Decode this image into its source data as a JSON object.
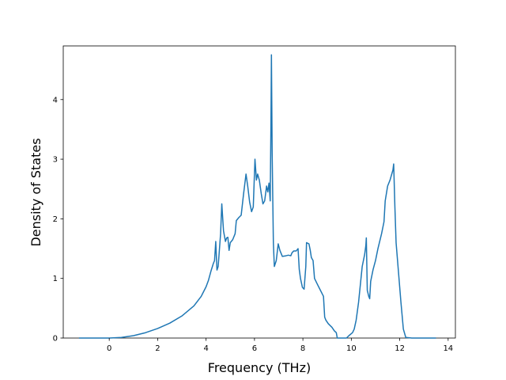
{
  "chart_data": {
    "type": "line",
    "title": "",
    "xlabel": "Frequency (THz)",
    "ylabel": "Density of States",
    "xlim": [
      -1.9,
      14.3
    ],
    "ylim": [
      0,
      4.9
    ],
    "xticks": [
      0,
      2,
      4,
      6,
      8,
      10,
      12,
      14
    ],
    "yticks": [
      0,
      1,
      2,
      3,
      4
    ],
    "grid": false,
    "series": [
      {
        "color": "#1f77b4",
        "points": [
          [
            -1.25,
            0
          ],
          [
            0,
            0
          ],
          [
            0.5,
            0.01
          ],
          [
            1.0,
            0.04
          ],
          [
            1.5,
            0.09
          ],
          [
            2.0,
            0.16
          ],
          [
            2.5,
            0.25
          ],
          [
            3.0,
            0.37
          ],
          [
            3.5,
            0.54
          ],
          [
            3.8,
            0.7
          ],
          [
            4.0,
            0.86
          ],
          [
            4.1,
            0.97
          ],
          [
            4.2,
            1.12
          ],
          [
            4.3,
            1.25
          ],
          [
            4.35,
            1.3
          ],
          [
            4.4,
            1.62
          ],
          [
            4.45,
            1.14
          ],
          [
            4.5,
            1.2
          ],
          [
            4.6,
            1.75
          ],
          [
            4.65,
            2.25
          ],
          [
            4.72,
            1.8
          ],
          [
            4.8,
            1.62
          ],
          [
            4.85,
            1.68
          ],
          [
            4.9,
            1.69
          ],
          [
            4.95,
            1.47
          ],
          [
            5.0,
            1.6
          ],
          [
            5.1,
            1.65
          ],
          [
            5.2,
            1.75
          ],
          [
            5.25,
            1.97
          ],
          [
            5.35,
            2.02
          ],
          [
            5.45,
            2.06
          ],
          [
            5.55,
            2.42
          ],
          [
            5.65,
            2.75
          ],
          [
            5.72,
            2.55
          ],
          [
            5.8,
            2.28
          ],
          [
            5.88,
            2.12
          ],
          [
            5.95,
            2.2
          ],
          [
            6.02,
            3.0
          ],
          [
            6.08,
            2.65
          ],
          [
            6.13,
            2.75
          ],
          [
            6.2,
            2.65
          ],
          [
            6.28,
            2.42
          ],
          [
            6.35,
            2.25
          ],
          [
            6.42,
            2.3
          ],
          [
            6.5,
            2.55
          ],
          [
            6.55,
            2.45
          ],
          [
            6.6,
            2.6
          ],
          [
            6.65,
            2.3
          ],
          [
            6.68,
            3.6
          ],
          [
            6.7,
            4.75
          ],
          [
            6.73,
            3.1
          ],
          [
            6.78,
            1.6
          ],
          [
            6.82,
            1.2
          ],
          [
            6.9,
            1.3
          ],
          [
            6.98,
            1.58
          ],
          [
            7.05,
            1.47
          ],
          [
            7.15,
            1.37
          ],
          [
            7.3,
            1.38
          ],
          [
            7.4,
            1.39
          ],
          [
            7.5,
            1.38
          ],
          [
            7.55,
            1.43
          ],
          [
            7.62,
            1.46
          ],
          [
            7.72,
            1.46
          ],
          [
            7.8,
            1.5
          ],
          [
            7.85,
            1.15
          ],
          [
            7.9,
            1.0
          ],
          [
            7.98,
            0.85
          ],
          [
            8.05,
            0.82
          ],
          [
            8.12,
            1.2
          ],
          [
            8.15,
            1.6
          ],
          [
            8.25,
            1.58
          ],
          [
            8.3,
            1.48
          ],
          [
            8.35,
            1.35
          ],
          [
            8.42,
            1.3
          ],
          [
            8.48,
            1.0
          ],
          [
            8.6,
            0.9
          ],
          [
            8.7,
            0.82
          ],
          [
            8.85,
            0.7
          ],
          [
            8.9,
            0.35
          ],
          [
            8.95,
            0.3
          ],
          [
            9.05,
            0.24
          ],
          [
            9.2,
            0.18
          ],
          [
            9.3,
            0.12
          ],
          [
            9.38,
            0.09
          ],
          [
            9.42,
            0.0
          ],
          [
            9.8,
            0.0
          ],
          [
            9.9,
            0.04
          ],
          [
            10.05,
            0.09
          ],
          [
            10.12,
            0.15
          ],
          [
            10.2,
            0.3
          ],
          [
            10.3,
            0.6
          ],
          [
            10.45,
            1.2
          ],
          [
            10.55,
            1.4
          ],
          [
            10.6,
            1.55
          ],
          [
            10.62,
            1.68
          ],
          [
            10.66,
            0.8
          ],
          [
            10.72,
            0.7
          ],
          [
            10.76,
            0.66
          ],
          [
            10.8,
            0.95
          ],
          [
            10.9,
            1.15
          ],
          [
            11.0,
            1.3
          ],
          [
            11.1,
            1.5
          ],
          [
            11.25,
            1.75
          ],
          [
            11.35,
            1.95
          ],
          [
            11.4,
            2.3
          ],
          [
            11.5,
            2.55
          ],
          [
            11.6,
            2.65
          ],
          [
            11.72,
            2.82
          ],
          [
            11.75,
            2.92
          ],
          [
            11.8,
            2.2
          ],
          [
            11.85,
            1.6
          ],
          [
            11.95,
            1.1
          ],
          [
            12.05,
            0.6
          ],
          [
            12.15,
            0.15
          ],
          [
            12.25,
            0.01
          ],
          [
            12.5,
            0
          ],
          [
            13.5,
            0
          ]
        ]
      }
    ]
  }
}
